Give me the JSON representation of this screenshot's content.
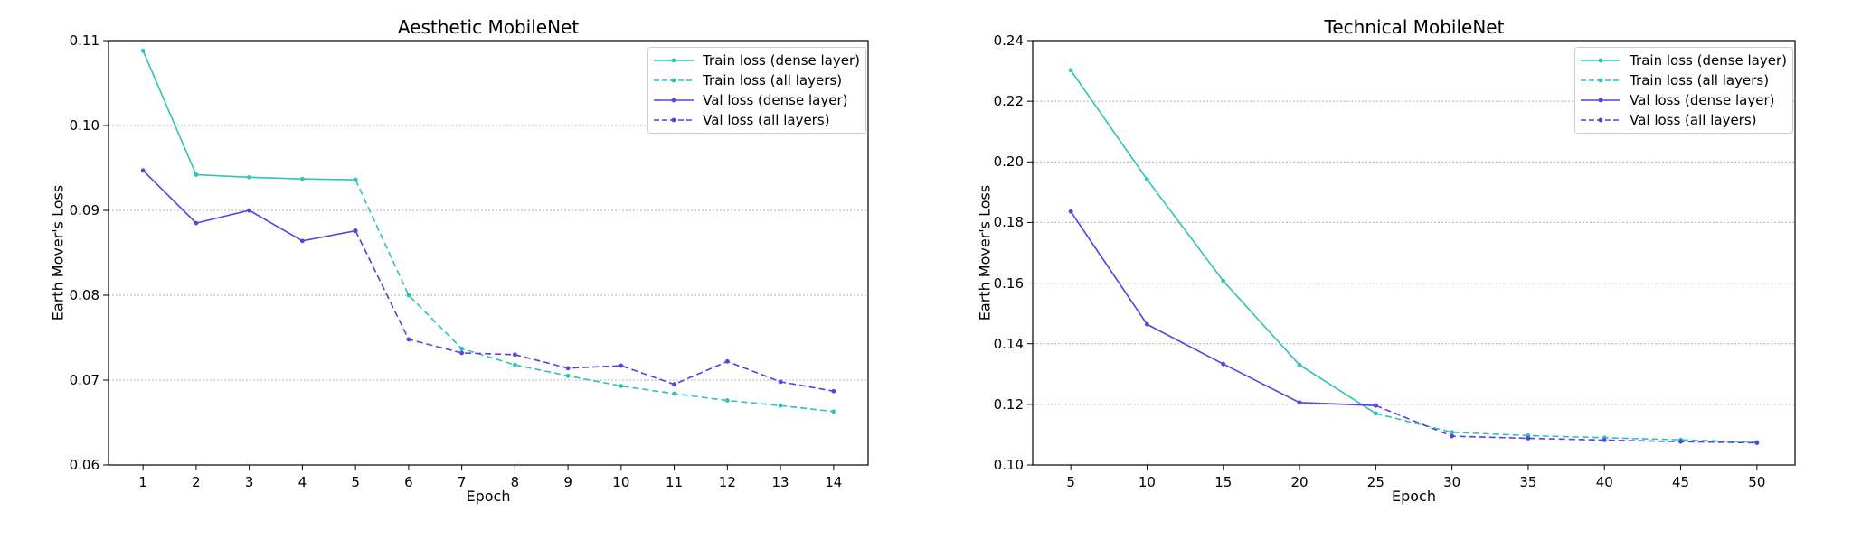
{
  "chart_data": [
    {
      "type": "line",
      "title": "Aesthetic MobileNet",
      "xlabel": "Epoch",
      "ylabel": "Earth Mover's Loss",
      "x_ticks": [
        "1",
        "2",
        "3",
        "4",
        "5",
        "6",
        "7",
        "8",
        "9",
        "10",
        "11",
        "12",
        "13",
        "14"
      ],
      "y_ticks": [
        "0.06",
        "0.07",
        "0.08",
        "0.09",
        "0.10",
        "0.11"
      ],
      "xlim": [
        0.35,
        14.65
      ],
      "ylim": [
        0.06,
        0.11
      ],
      "grid": "horizontal",
      "legend_position": "top-right",
      "series": [
        {
          "name": "Train loss (dense layer)",
          "color": "#2ec4b6",
          "dash": "solid",
          "x": [
            1,
            2,
            3,
            4,
            5
          ],
          "y": [
            0.1088,
            0.0942,
            0.0939,
            0.0937,
            0.0936
          ]
        },
        {
          "name": "Train loss (all layers)",
          "color": "#2ec4b6",
          "dash": "dashed",
          "x": [
            5,
            6,
            7,
            8,
            9,
            10,
            11,
            12,
            13,
            14
          ],
          "y": [
            0.0936,
            0.08,
            0.0737,
            0.0718,
            0.0705,
            0.0693,
            0.0684,
            0.0676,
            0.067,
            0.0663
          ]
        },
        {
          "name": "Val loss (dense layer)",
          "color": "#5b3fe0",
          "dash": "solid",
          "x": [
            1,
            2,
            3,
            4,
            5
          ],
          "y": [
            0.0947,
            0.0885,
            0.09,
            0.0864,
            0.0876
          ]
        },
        {
          "name": "Val loss (all layers)",
          "color": "#5b3fe0",
          "dash": "dashed",
          "x": [
            5,
            6,
            7,
            8,
            9,
            10,
            11,
            12,
            13,
            14
          ],
          "y": [
            0.0876,
            0.0748,
            0.0732,
            0.073,
            0.0714,
            0.0717,
            0.0695,
            0.0722,
            0.0698,
            0.0687
          ]
        }
      ]
    },
    {
      "type": "line",
      "title": "Technical MobileNet",
      "xlabel": "Epoch",
      "ylabel": "Earth Mover's Loss",
      "x_ticks": [
        "5",
        "10",
        "15",
        "20",
        "25",
        "30",
        "35",
        "40",
        "45",
        "50"
      ],
      "y_ticks": [
        "0.10",
        "0.12",
        "0.14",
        "0.16",
        "0.18",
        "0.20",
        "0.22",
        "0.24"
      ],
      "xlim": [
        2.5,
        52.5
      ],
      "ylim": [
        0.1,
        0.24
      ],
      "grid": "horizontal",
      "legend_position": "top-right",
      "series": [
        {
          "name": "Train loss (dense layer)",
          "color": "#2ec4b6",
          "dash": "solid",
          "x": [
            5,
            10,
            15,
            20,
            25
          ],
          "y": [
            0.2302,
            0.1942,
            0.1607,
            0.133,
            0.117
          ]
        },
        {
          "name": "Train loss (all layers)",
          "color": "#2ec4b6",
          "dash": "dashed",
          "x": [
            25,
            30,
            35,
            40,
            45,
            50
          ],
          "y": [
            0.117,
            0.1108,
            0.1097,
            0.109,
            0.1083,
            0.1075
          ]
        },
        {
          "name": "Val loss (dense layer)",
          "color": "#5b3fe0",
          "dash": "solid",
          "x": [
            5,
            10,
            15,
            20,
            25
          ],
          "y": [
            0.1836,
            0.1464,
            0.1333,
            0.1206,
            0.1196
          ]
        },
        {
          "name": "Val loss (all layers)",
          "color": "#5b3fe0",
          "dash": "dashed",
          "x": [
            25,
            30,
            35,
            40,
            45,
            50
          ],
          "y": [
            0.1196,
            0.1095,
            0.1088,
            0.1082,
            0.1077,
            0.1073
          ]
        }
      ]
    }
  ]
}
